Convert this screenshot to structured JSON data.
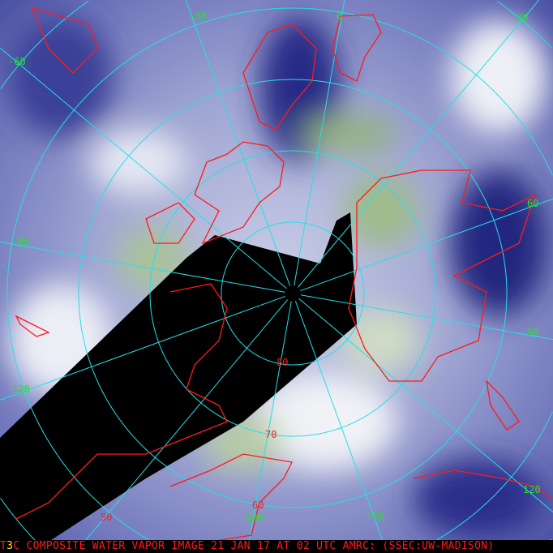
{
  "caption": {
    "prefix": "T",
    "highlight": "3",
    "text": "C COMPOSITE WATER VAPOR IMAGE 21 JAN 17 AT 02 UTC AMRC: (SSEC:UW-MADISON)"
  },
  "longitude_labels": [
    "-30",
    "0",
    "30",
    "-60",
    "60",
    "-90",
    "90",
    "-120",
    "120",
    "150",
    "180",
    "-"
  ],
  "latitude_labels": [
    "80",
    "70",
    "60",
    "50"
  ],
  "colors": {
    "grid": "#22e0e8",
    "coastline": "#ff1a1a",
    "no_data": "#000000",
    "dry": "#1c1f8a",
    "moist": "#e8ecf4",
    "very_moist": "#8fb27a"
  }
}
